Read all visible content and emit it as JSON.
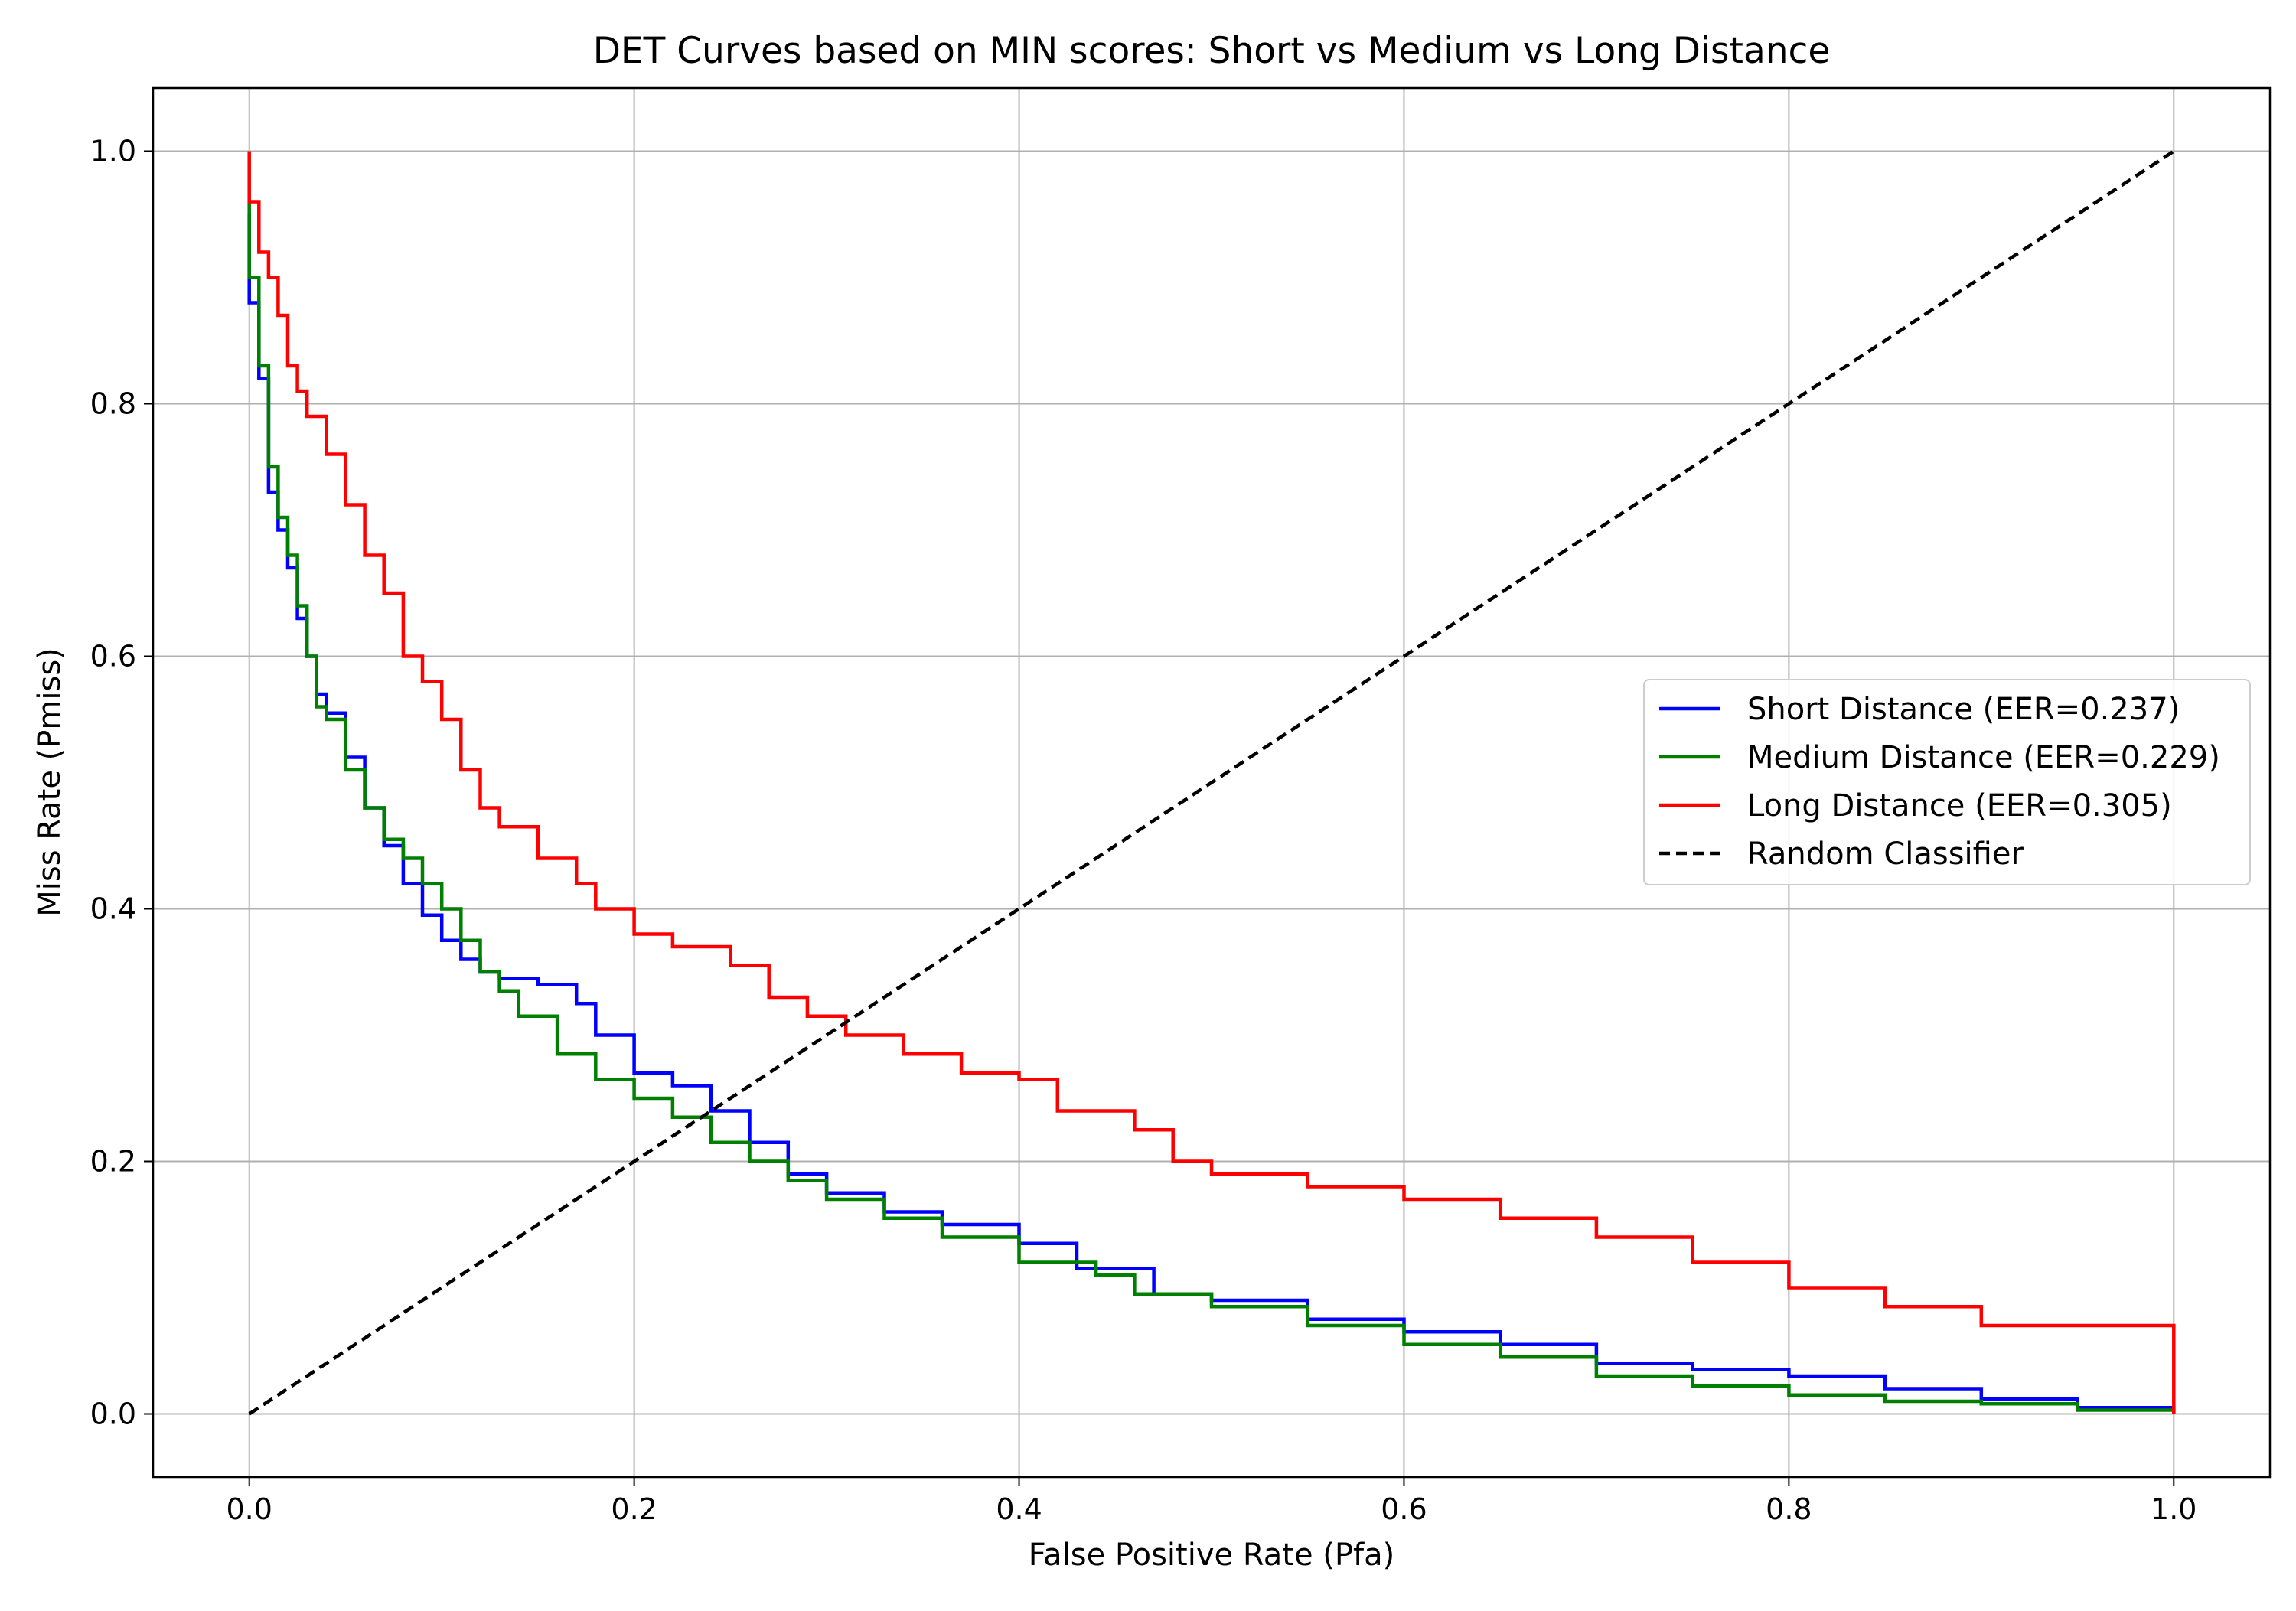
{
  "chart_data": {
    "type": "line",
    "title": "DET Curves based on MIN scores: Short vs Medium vs Long Distance",
    "xlabel": "False Positive Rate (Pfa)",
    "ylabel": "Miss Rate (Pmiss)",
    "xlim": [
      -0.05,
      1.05
    ],
    "ylim": [
      -0.05,
      1.05
    ],
    "xticks": [
      0.0,
      0.2,
      0.4,
      0.6,
      0.8,
      1.0
    ],
    "yticks": [
      0.0,
      0.2,
      0.4,
      0.6,
      0.8,
      1.0
    ],
    "xtick_labels": [
      "0.0",
      "0.2",
      "0.4",
      "0.6",
      "0.8",
      "1.0"
    ],
    "ytick_labels": [
      "0.0",
      "0.2",
      "0.4",
      "0.6",
      "0.8",
      "1.0"
    ],
    "grid": true,
    "legend_position": "center-right",
    "series": [
      {
        "name": "Short Distance (EER=0.237)",
        "color": "#0000ff",
        "style": "solid",
        "x": [
          0.0,
          0.0,
          0.005,
          0.01,
          0.015,
          0.02,
          0.025,
          0.03,
          0.035,
          0.04,
          0.05,
          0.06,
          0.07,
          0.08,
          0.09,
          0.1,
          0.11,
          0.12,
          0.13,
          0.15,
          0.17,
          0.18,
          0.2,
          0.22,
          0.24,
          0.26,
          0.28,
          0.3,
          0.33,
          0.36,
          0.4,
          0.43,
          0.47,
          0.5,
          0.55,
          0.6,
          0.65,
          0.7,
          0.75,
          0.8,
          0.85,
          0.9,
          0.95,
          1.0
        ],
        "y": [
          0.95,
          0.88,
          0.82,
          0.73,
          0.7,
          0.67,
          0.63,
          0.6,
          0.57,
          0.555,
          0.52,
          0.48,
          0.45,
          0.42,
          0.395,
          0.375,
          0.36,
          0.35,
          0.345,
          0.34,
          0.325,
          0.3,
          0.27,
          0.26,
          0.24,
          0.215,
          0.19,
          0.175,
          0.16,
          0.15,
          0.135,
          0.115,
          0.095,
          0.09,
          0.075,
          0.065,
          0.055,
          0.04,
          0.035,
          0.03,
          0.02,
          0.012,
          0.005,
          0.0
        ]
      },
      {
        "name": "Medium Distance (EER=0.229)",
        "color": "#008000",
        "style": "solid",
        "x": [
          0.0,
          0.0,
          0.005,
          0.01,
          0.015,
          0.02,
          0.025,
          0.03,
          0.035,
          0.04,
          0.05,
          0.06,
          0.07,
          0.08,
          0.09,
          0.1,
          0.11,
          0.12,
          0.13,
          0.14,
          0.16,
          0.18,
          0.2,
          0.22,
          0.24,
          0.26,
          0.28,
          0.3,
          0.33,
          0.36,
          0.4,
          0.44,
          0.46,
          0.5,
          0.55,
          0.6,
          0.65,
          0.7,
          0.75,
          0.8,
          0.85,
          0.9,
          0.95,
          1.0
        ],
        "y": [
          0.96,
          0.9,
          0.83,
          0.75,
          0.71,
          0.68,
          0.64,
          0.6,
          0.56,
          0.55,
          0.51,
          0.48,
          0.455,
          0.44,
          0.42,
          0.4,
          0.375,
          0.35,
          0.335,
          0.315,
          0.285,
          0.265,
          0.25,
          0.235,
          0.215,
          0.2,
          0.185,
          0.17,
          0.155,
          0.14,
          0.12,
          0.11,
          0.095,
          0.085,
          0.07,
          0.055,
          0.045,
          0.03,
          0.022,
          0.015,
          0.01,
          0.008,
          0.003,
          0.0
        ]
      },
      {
        "name": "Long Distance (EER=0.305)",
        "color": "#ff0000",
        "style": "solid",
        "x": [
          0.0,
          0.0,
          0.005,
          0.01,
          0.015,
          0.02,
          0.025,
          0.03,
          0.04,
          0.05,
          0.06,
          0.07,
          0.08,
          0.09,
          0.1,
          0.11,
          0.12,
          0.13,
          0.15,
          0.17,
          0.18,
          0.2,
          0.22,
          0.25,
          0.27,
          0.29,
          0.31,
          0.34,
          0.37,
          0.4,
          0.42,
          0.46,
          0.48,
          0.5,
          0.55,
          0.6,
          0.65,
          0.7,
          0.75,
          0.8,
          0.85,
          0.9,
          1.0,
          1.0
        ],
        "y": [
          1.0,
          0.96,
          0.92,
          0.9,
          0.87,
          0.83,
          0.81,
          0.79,
          0.76,
          0.72,
          0.68,
          0.65,
          0.6,
          0.58,
          0.55,
          0.51,
          0.48,
          0.465,
          0.44,
          0.42,
          0.4,
          0.38,
          0.37,
          0.355,
          0.33,
          0.315,
          0.3,
          0.285,
          0.27,
          0.265,
          0.24,
          0.225,
          0.2,
          0.19,
          0.18,
          0.17,
          0.155,
          0.14,
          0.12,
          0.1,
          0.085,
          0.07,
          0.068,
          0.0
        ]
      },
      {
        "name": "Random Classifier",
        "color": "#000000",
        "style": "dashed",
        "x": [
          0.0,
          1.0
        ],
        "y": [
          0.0,
          1.0
        ]
      }
    ]
  }
}
